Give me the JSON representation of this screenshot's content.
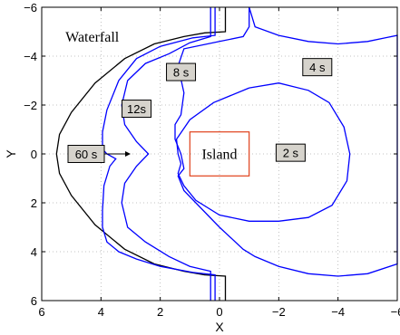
{
  "chart_data": {
    "type": "line",
    "title": "",
    "xlabel": "X",
    "ylabel": "Y",
    "xlim": [
      6,
      -6
    ],
    "ylim": [
      6,
      -6
    ],
    "x_reversed": true,
    "y_reversed": true,
    "xticks": [
      "6",
      "4",
      "2",
      "0",
      "−2",
      "−4",
      "−6"
    ],
    "yticks": [
      "−6",
      "−4",
      "−2",
      "0",
      "2",
      "4",
      "6"
    ],
    "grid": true,
    "colors": {
      "contour": "#0000ff",
      "boundary": "#000000",
      "island": "#e0401a",
      "box_fill": "#d6d3cc"
    },
    "annotations": {
      "waterfall": "Waterfall",
      "island": "Island"
    },
    "island_box": {
      "x": [
        1.0,
        -1.0
      ],
      "y": [
        -0.9,
        0.9
      ]
    },
    "boundary": {
      "x": [
        -0.2,
        -0.2,
        0.5,
        1.2,
        2.2,
        3.2,
        4.2,
        5.0,
        5.4,
        5.5,
        5.4,
        5.0,
        4.2,
        3.2,
        2.2,
        1.2,
        0.5,
        -0.2,
        -0.2
      ],
      "y": [
        -6.0,
        -5.0,
        -4.95,
        -4.8,
        -4.5,
        -3.9,
        -2.9,
        -1.7,
        -0.8,
        0.0,
        0.8,
        1.7,
        2.9,
        3.9,
        4.5,
        4.8,
        4.95,
        5.0,
        6.0
      ]
    },
    "contours": [
      {
        "label": "60 s",
        "label_pos": [
          4.5,
          0.0
        ],
        "arrow_to": [
          3.0,
          0.0
        ],
        "x": [
          0.15,
          0.15,
          0.9,
          2.0,
          2.8,
          3.4,
          3.8,
          3.95,
          3.95,
          3.8,
          3.5,
          3.7,
          3.9,
          3.95,
          3.95,
          3.8,
          3.4,
          2.8,
          2.0,
          0.9,
          0.15,
          0.15
        ],
        "y": [
          -6.0,
          -4.85,
          -4.75,
          -4.4,
          -3.9,
          -3.0,
          -1.8,
          -0.9,
          -0.2,
          0.0,
          0.2,
          0.5,
          1.3,
          2.3,
          3.0,
          3.6,
          4.0,
          4.3,
          4.6,
          4.85,
          4.95,
          6.0
        ]
      },
      {
        "label": "12s",
        "label_pos": [
          2.8,
          -1.85
        ],
        "x": [
          0.3,
          0.3,
          1.0,
          1.7,
          2.5,
          3.1,
          3.3,
          3.2,
          2.8,
          2.4,
          2.8,
          3.2,
          3.3,
          3.1,
          2.5,
          1.7,
          1.0,
          0.3,
          0.3
        ],
        "y": [
          -6.0,
          -4.8,
          -4.55,
          -4.1,
          -3.7,
          -3.0,
          -2.0,
          -1.2,
          -0.5,
          0.0,
          0.5,
          1.2,
          2.0,
          3.0,
          3.6,
          4.2,
          4.6,
          4.8,
          6.0
        ]
      },
      {
        "label": "8 s",
        "label_pos": [
          1.3,
          -3.35
        ],
        "x": [
          -1.0,
          -1.2,
          -2.0,
          -3.0,
          -4.0,
          -5.0,
          -5.6,
          -6.0,
          -6.0,
          -5.0,
          -4.0,
          -3.0,
          -2.0,
          -1.2,
          -0.8,
          0.0,
          1.2,
          1.4,
          1.2,
          1.3,
          1.5,
          1.5,
          1.3,
          1.2,
          1.4,
          1.2,
          0.0,
          -0.8,
          -1.0,
          -1.0
        ],
        "y": [
          -6.0,
          -5.2,
          -4.85,
          -4.6,
          -4.5,
          -4.6,
          -4.75,
          -4.85,
          4.5,
          4.9,
          5.0,
          4.9,
          4.6,
          4.2,
          3.9,
          3.0,
          1.5,
          0.9,
          0.6,
          0.0,
          -0.6,
          -1.2,
          -1.6,
          -2.5,
          -3.6,
          -4.3,
          -4.6,
          -4.8,
          -5.2,
          -6.0
        ]
      },
      {
        "label": "4 s",
        "label_pos": [
          -3.3,
          -3.55
        ],
        "x": [
          -1.0,
          0.2,
          1.0,
          1.45,
          1.4,
          1.3,
          1.4,
          1.2,
          0.8,
          0.0,
          -1.0,
          -2.0,
          -3.0,
          -3.8,
          -4.3,
          -4.4,
          -4.2,
          -3.7,
          -3.0,
          -2.0,
          -1.0
        ],
        "y": [
          -2.7,
          -2.1,
          -1.4,
          -0.6,
          0.0,
          0.4,
          0.8,
          1.3,
          1.9,
          2.5,
          2.75,
          2.75,
          2.6,
          2.1,
          1.1,
          0.0,
          -1.1,
          -2.1,
          -2.6,
          -2.9,
          -2.7
        ]
      },
      {
        "label": "2 s",
        "label_pos": [
          -2.4,
          -0.05
        ]
      }
    ]
  }
}
